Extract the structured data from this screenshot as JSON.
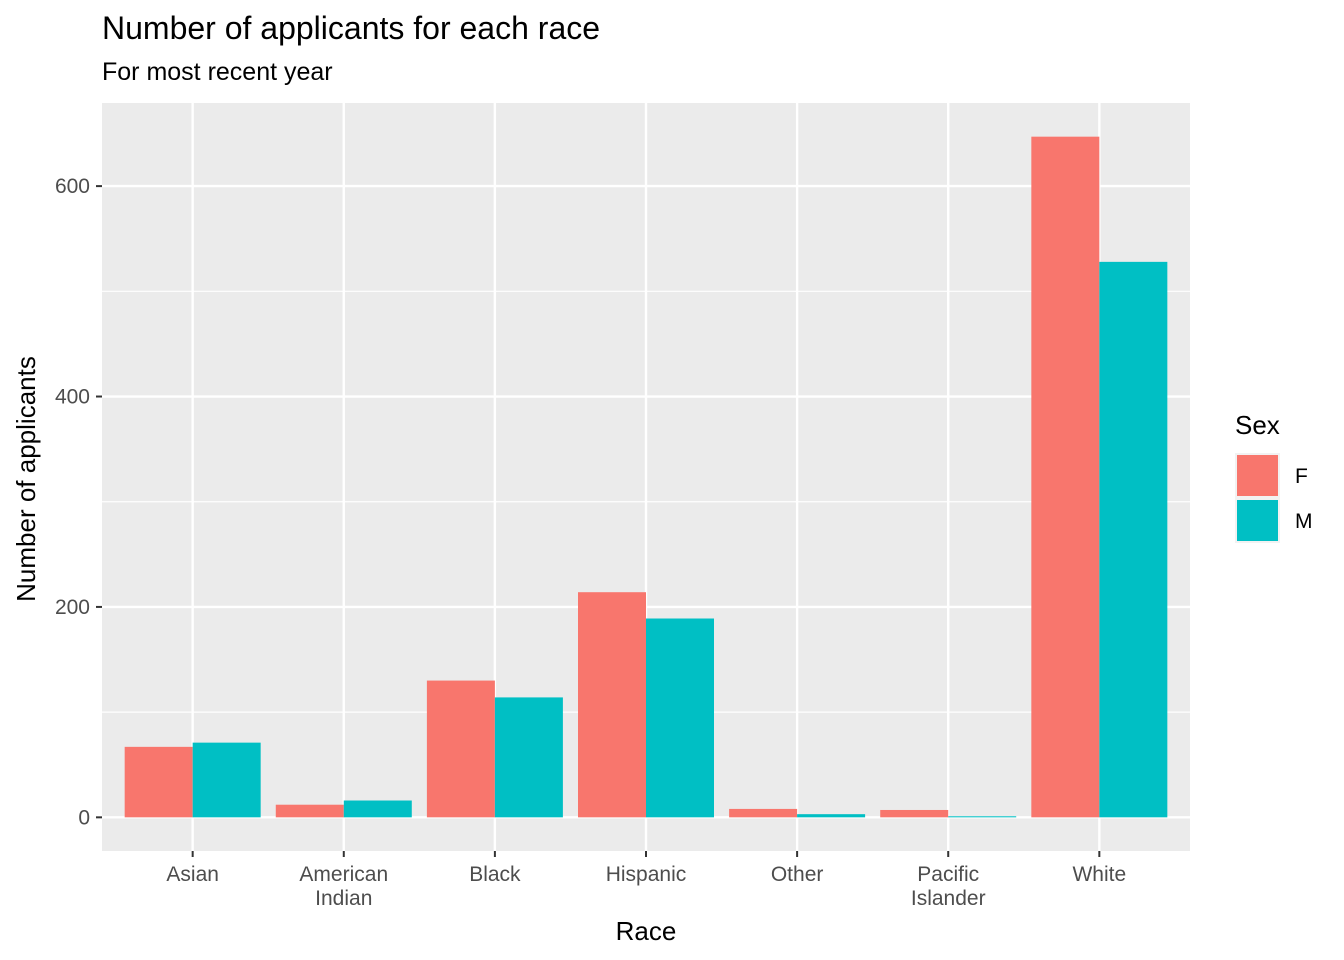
{
  "chart_data": {
    "type": "bar",
    "title": "Number of applicants for each race",
    "subtitle": "For most recent year",
    "xlabel": "Race",
    "ylabel": "Number of applicants",
    "categories": [
      [
        "Asian"
      ],
      [
        "American",
        "Indian"
      ],
      [
        "Black"
      ],
      [
        "Hispanic"
      ],
      [
        "Other"
      ],
      [
        "Pacific",
        "Islander"
      ],
      [
        "White"
      ]
    ],
    "series": [
      {
        "name": "F",
        "color": "#F8766D",
        "values": [
          67,
          12,
          130,
          214,
          8,
          7,
          647
        ]
      },
      {
        "name": "M",
        "color": "#00BFC4",
        "values": [
          71,
          16,
          114,
          189,
          3,
          1,
          528
        ]
      }
    ],
    "ylim": [
      -32,
      679
    ],
    "yticks": [
      0,
      200,
      400,
      600
    ],
    "grid": true,
    "legend": {
      "title": "Sex",
      "placement": "right"
    }
  }
}
